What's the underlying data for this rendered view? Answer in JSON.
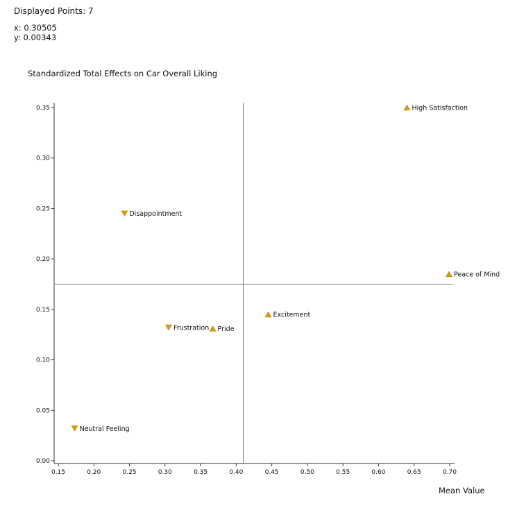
{
  "header": {
    "displayed_points": "Displayed Points: 7",
    "coord_x": "x: 0.30505",
    "coord_y": "y: 0.00343"
  },
  "colors": {
    "marker": "#D4A017",
    "marker_stroke": "#B8860B",
    "axis": "#333333",
    "reference_line": "#777777"
  },
  "chart_data": {
    "type": "scatter",
    "title": "Standardized Total Effects on Car Overall Liking",
    "xlabel": "Mean Value",
    "ylabel": "",
    "xlim": [
      0.15,
      0.7
    ],
    "ylim": [
      0.0,
      0.35
    ],
    "x_ticks": [
      "0.15",
      "0.20",
      "0.25",
      "0.30",
      "0.35",
      "0.40",
      "0.45",
      "0.50",
      "0.55",
      "0.60",
      "0.65",
      "0.70"
    ],
    "y_ticks": [
      "0.00",
      "0.05",
      "0.10",
      "0.15",
      "0.20",
      "0.25",
      "0.30",
      "0.35"
    ],
    "reference_lines": {
      "x": 0.41,
      "y": 0.175
    },
    "grid": false,
    "points": [
      {
        "label": "High Satisfaction",
        "x": 0.64,
        "y": 0.35,
        "marker": "triangle-up"
      },
      {
        "label": "Disappointment",
        "x": 0.243,
        "y": 0.245,
        "marker": "triangle-down"
      },
      {
        "label": "Peace of Mind",
        "x": 0.699,
        "y": 0.185,
        "marker": "triangle-up"
      },
      {
        "label": "Excitement",
        "x": 0.445,
        "y": 0.145,
        "marker": "triangle-up"
      },
      {
        "label": "Frustration",
        "x": 0.305,
        "y": 0.132,
        "marker": "triangle-down"
      },
      {
        "label": "Pride",
        "x": 0.367,
        "y": 0.131,
        "marker": "triangle-up"
      },
      {
        "label": "Neutral Feeling",
        "x": 0.173,
        "y": 0.032,
        "marker": "triangle-down"
      }
    ]
  }
}
